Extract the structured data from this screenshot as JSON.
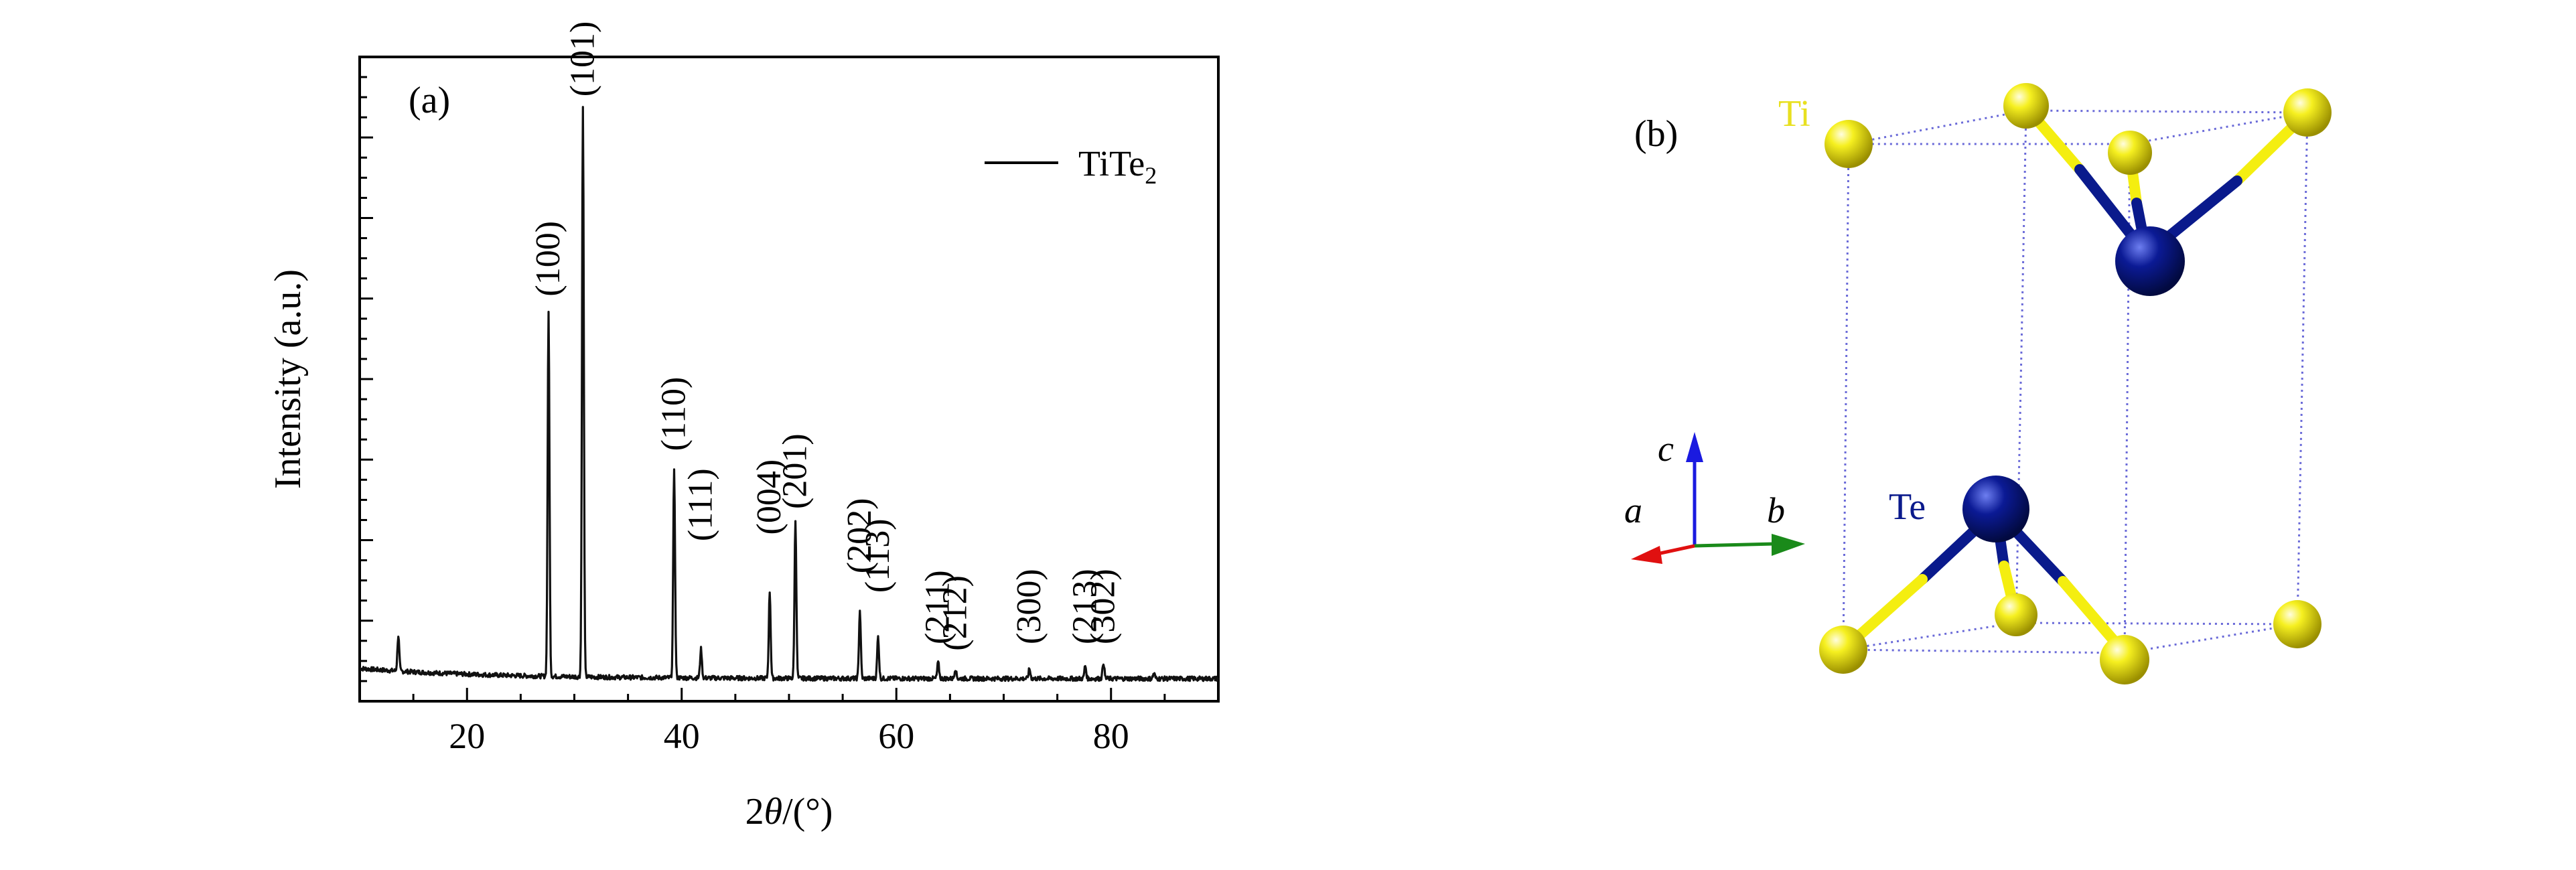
{
  "panel_a": {
    "label": "(a)",
    "chart_data": {
      "type": "line",
      "title": "",
      "xlabel_prefix": "2",
      "xlabel_var": "θ",
      "xlabel_suffix": "/(°)",
      "ylabel": "Intensity (a.u.)",
      "xlim": [
        10,
        90
      ],
      "ylim": [
        0,
        100
      ],
      "x_ticks": [
        20,
        40,
        60,
        80
      ],
      "y_ticks_shown": false,
      "grid": false,
      "legend": {
        "position": "top-right",
        "text_main": "TiTe",
        "text_sub": "2"
      },
      "series": [
        {
          "name": "TiTe2",
          "baseline": 3.5,
          "peaks": [
            {
              "x": 13.6,
              "y": 9
            },
            {
              "x": 27.6,
              "y": 60
            },
            {
              "x": 30.8,
              "y": 92
            },
            {
              "x": 39.3,
              "y": 36
            },
            {
              "x": 41.8,
              "y": 8
            },
            {
              "x": 48.2,
              "y": 17
            },
            {
              "x": 50.6,
              "y": 28
            },
            {
              "x": 56.6,
              "y": 14
            },
            {
              "x": 58.3,
              "y": 10
            },
            {
              "x": 63.9,
              "y": 6
            },
            {
              "x": 65.5,
              "y": 5
            },
            {
              "x": 72.4,
              "y": 5
            },
            {
              "x": 77.6,
              "y": 5.5
            },
            {
              "x": 79.3,
              "y": 6
            },
            {
              "x": 84.0,
              "y": 4.3
            }
          ]
        }
      ],
      "annotations": [
        {
          "text": "(100)",
          "x": 27.6,
          "y": 62
        },
        {
          "text": "(101)",
          "x": 30.8,
          "y": 93
        },
        {
          "text": "(110)",
          "x": 39.3,
          "y": 38
        },
        {
          "text": "(111)",
          "x": 41.8,
          "y": 24
        },
        {
          "text": "(004)",
          "x": 48.2,
          "y": 25
        },
        {
          "text": "(201)",
          "x": 50.6,
          "y": 29
        },
        {
          "text": "(202)",
          "x": 56.6,
          "y": 19
        },
        {
          "text": "(113)",
          "x": 58.3,
          "y": 16
        },
        {
          "text": "(211)",
          "x": 63.9,
          "y": 8
        },
        {
          "text": "(212)",
          "x": 65.5,
          "y": 7
        },
        {
          "text": "(300)",
          "x": 72.4,
          "y": 8
        },
        {
          "text": "(213)",
          "x": 77.6,
          "y": 8
        },
        {
          "text": "(302)",
          "x": 79.3,
          "y": 8
        }
      ]
    }
  },
  "panel_b": {
    "label": "(b)",
    "atom_labels": {
      "ti": "Ti",
      "te": "Te"
    },
    "axis_labels": {
      "a": "a",
      "b": "b",
      "c": "c"
    },
    "colors": {
      "ti": "#f4ee10",
      "te": "#0a1a8c",
      "cell_edges": "#6a6ad8",
      "axis_a": "#e01010",
      "axis_b": "#1a8a1a",
      "axis_c": "#1a1ae0"
    }
  }
}
